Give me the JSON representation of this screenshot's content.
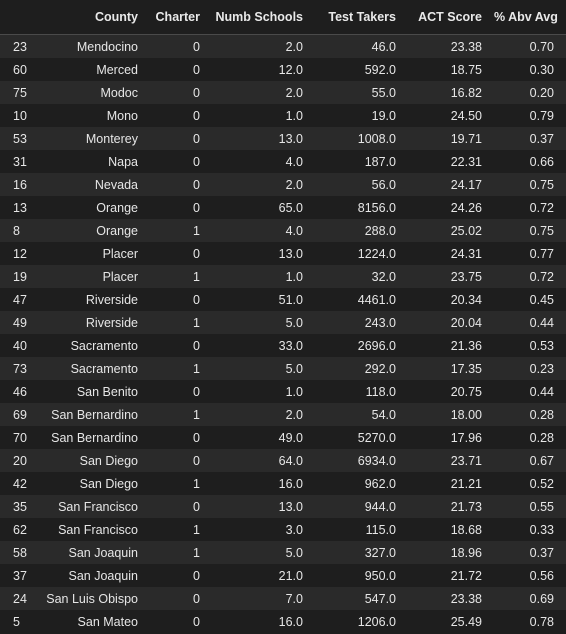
{
  "table": {
    "columns": [
      "",
      "County",
      "Charter",
      "Numb Schools",
      "Test Takers",
      "ACT Score",
      "% Abv Avg"
    ],
    "rows": [
      [
        "23",
        "Mendocino",
        "0",
        "2.0",
        "46.0",
        "23.38",
        "0.70"
      ],
      [
        "60",
        "Merced",
        "0",
        "12.0",
        "592.0",
        "18.75",
        "0.30"
      ],
      [
        "75",
        "Modoc",
        "0",
        "2.0",
        "55.0",
        "16.82",
        "0.20"
      ],
      [
        "10",
        "Mono",
        "0",
        "1.0",
        "19.0",
        "24.50",
        "0.79"
      ],
      [
        "53",
        "Monterey",
        "0",
        "13.0",
        "1008.0",
        "19.71",
        "0.37"
      ],
      [
        "31",
        "Napa",
        "0",
        "4.0",
        "187.0",
        "22.31",
        "0.66"
      ],
      [
        "16",
        "Nevada",
        "0",
        "2.0",
        "56.0",
        "24.17",
        "0.75"
      ],
      [
        "13",
        "Orange",
        "0",
        "65.0",
        "8156.0",
        "24.26",
        "0.72"
      ],
      [
        "8",
        "Orange",
        "1",
        "4.0",
        "288.0",
        "25.02",
        "0.75"
      ],
      [
        "12",
        "Placer",
        "0",
        "13.0",
        "1224.0",
        "24.31",
        "0.77"
      ],
      [
        "19",
        "Placer",
        "1",
        "1.0",
        "32.0",
        "23.75",
        "0.72"
      ],
      [
        "47",
        "Riverside",
        "0",
        "51.0",
        "4461.0",
        "20.34",
        "0.45"
      ],
      [
        "49",
        "Riverside",
        "1",
        "5.0",
        "243.0",
        "20.04",
        "0.44"
      ],
      [
        "40",
        "Sacramento",
        "0",
        "33.0",
        "2696.0",
        "21.36",
        "0.53"
      ],
      [
        "73",
        "Sacramento",
        "1",
        "5.0",
        "292.0",
        "17.35",
        "0.23"
      ],
      [
        "46",
        "San Benito",
        "0",
        "1.0",
        "118.0",
        "20.75",
        "0.44"
      ],
      [
        "69",
        "San Bernardino",
        "1",
        "2.0",
        "54.0",
        "18.00",
        "0.28"
      ],
      [
        "70",
        "San Bernardino",
        "0",
        "49.0",
        "5270.0",
        "17.96",
        "0.28"
      ],
      [
        "20",
        "San Diego",
        "0",
        "64.0",
        "6934.0",
        "23.71",
        "0.67"
      ],
      [
        "42",
        "San Diego",
        "1",
        "16.0",
        "962.0",
        "21.21",
        "0.52"
      ],
      [
        "35",
        "San Francisco",
        "0",
        "13.0",
        "944.0",
        "21.73",
        "0.55"
      ],
      [
        "62",
        "San Francisco",
        "1",
        "3.0",
        "115.0",
        "18.68",
        "0.33"
      ],
      [
        "58",
        "San Joaquin",
        "1",
        "5.0",
        "327.0",
        "18.96",
        "0.37"
      ],
      [
        "37",
        "San Joaquin",
        "0",
        "21.0",
        "950.0",
        "21.72",
        "0.56"
      ],
      [
        "24",
        "San Luis Obispo",
        "0",
        "7.0",
        "547.0",
        "23.38",
        "0.69"
      ],
      [
        "5",
        "San Mateo",
        "0",
        "16.0",
        "1206.0",
        "25.49",
        "0.78"
      ]
    ]
  }
}
